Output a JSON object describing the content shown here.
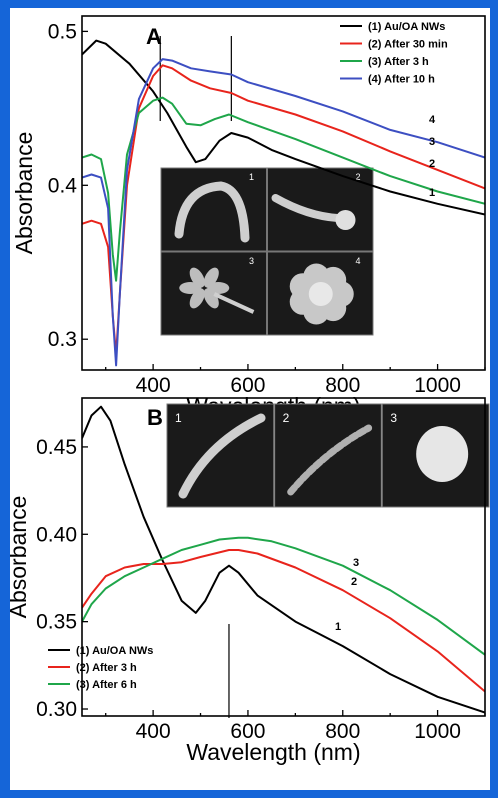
{
  "chart_data": [
    {
      "panel": "A",
      "type": "line",
      "xlabel": "Wavelength (nm)",
      "ylabel": "Absorbance",
      "xlim": [
        250,
        1100
      ],
      "ylim": [
        0.28,
        0.51
      ],
      "xticks": [
        400,
        600,
        800,
        1000
      ],
      "xtick_labels": [
        "400",
        "600",
        "800",
        "1000"
      ],
      "yticks": [
        0.3,
        0.4,
        0.5
      ],
      "ytick_labels": [
        "0.3",
        "0.4",
        "0.5"
      ],
      "legend_position": "top-right",
      "marker_lines_x": [
        415,
        565
      ],
      "series": [
        {
          "name": "(1) Au/OA NWs",
          "label": "1",
          "color": "#000000",
          "x": [
            250,
            280,
            300,
            350,
            400,
            430,
            470,
            490,
            510,
            540,
            565,
            600,
            650,
            700,
            800,
            900,
            1000,
            1100
          ],
          "y": [
            0.485,
            0.494,
            0.492,
            0.479,
            0.461,
            0.447,
            0.425,
            0.415,
            0.417,
            0.429,
            0.434,
            0.431,
            0.423,
            0.417,
            0.406,
            0.396,
            0.388,
            0.381
          ]
        },
        {
          "name": "(2) After 30 min",
          "label": "2",
          "color": "#e8241c",
          "x": [
            250,
            270,
            290,
            305,
            315,
            322,
            330,
            345,
            370,
            400,
            420,
            440,
            480,
            520,
            565,
            600,
            700,
            800,
            900,
            1000,
            1100
          ],
          "y": [
            0.375,
            0.377,
            0.375,
            0.36,
            0.315,
            0.29,
            0.33,
            0.4,
            0.45,
            0.471,
            0.478,
            0.476,
            0.468,
            0.463,
            0.46,
            0.455,
            0.446,
            0.435,
            0.422,
            0.41,
            0.398
          ]
        },
        {
          "name": "(3) After 3 h",
          "label": "3",
          "color": "#1fa64a",
          "x": [
            250,
            270,
            290,
            305,
            315,
            322,
            330,
            345,
            370,
            400,
            420,
            440,
            470,
            500,
            530,
            560,
            600,
            700,
            800,
            900,
            1000,
            1100
          ],
          "y": [
            0.418,
            0.42,
            0.417,
            0.395,
            0.355,
            0.338,
            0.37,
            0.42,
            0.447,
            0.455,
            0.457,
            0.453,
            0.44,
            0.439,
            0.443,
            0.446,
            0.441,
            0.43,
            0.418,
            0.406,
            0.396,
            0.388
          ]
        },
        {
          "name": "(4) After 10 h",
          "label": "4",
          "color": "#3d4fc2",
          "x": [
            250,
            270,
            290,
            305,
            315,
            322,
            330,
            345,
            370,
            400,
            420,
            440,
            480,
            520,
            565,
            600,
            700,
            800,
            900,
            1000,
            1100
          ],
          "y": [
            0.405,
            0.407,
            0.405,
            0.385,
            0.315,
            0.283,
            0.33,
            0.41,
            0.456,
            0.476,
            0.482,
            0.481,
            0.476,
            0.474,
            0.472,
            0.467,
            0.458,
            0.448,
            0.436,
            0.428,
            0.418
          ]
        }
      ],
      "inset_labels": [
        "1",
        "2",
        "3",
        "4"
      ]
    },
    {
      "panel": "B",
      "type": "line",
      "xlabel": "Wavelength (nm)",
      "ylabel": "Absorbance",
      "xlim": [
        250,
        1100
      ],
      "ylim": [
        0.296,
        0.478
      ],
      "xticks": [
        400,
        600,
        800,
        1000
      ],
      "xtick_labels": [
        "400",
        "600",
        "800",
        "1000"
      ],
      "yticks": [
        0.3,
        0.35,
        0.4,
        0.45
      ],
      "ytick_labels": [
        "0.30",
        "0.35",
        "0.40",
        "0.45"
      ],
      "legend_position": "bottom-left",
      "marker_lines_x": [
        560
      ],
      "series": [
        {
          "name": "(1) Au/OA NWs",
          "label": "1",
          "color": "#000000",
          "x": [
            250,
            270,
            290,
            310,
            340,
            380,
            420,
            460,
            490,
            510,
            540,
            560,
            580,
            620,
            700,
            800,
            900,
            1000,
            1100
          ],
          "y": [
            0.455,
            0.468,
            0.473,
            0.465,
            0.44,
            0.41,
            0.385,
            0.362,
            0.355,
            0.362,
            0.378,
            0.382,
            0.378,
            0.365,
            0.35,
            0.336,
            0.32,
            0.307,
            0.298
          ]
        },
        {
          "name": "(2) After 3 h",
          "label": "2",
          "color": "#e8241c",
          "x": [
            250,
            270,
            300,
            340,
            380,
            420,
            460,
            500,
            560,
            580,
            620,
            700,
            800,
            900,
            1000,
            1100
          ],
          "y": [
            0.358,
            0.366,
            0.376,
            0.381,
            0.383,
            0.383,
            0.384,
            0.387,
            0.391,
            0.391,
            0.389,
            0.381,
            0.368,
            0.352,
            0.333,
            0.31
          ]
        },
        {
          "name": "(3) After 6 h",
          "label": "3",
          "color": "#1fa64a",
          "x": [
            250,
            270,
            300,
            340,
            380,
            420,
            460,
            500,
            540,
            580,
            600,
            650,
            700,
            800,
            900,
            1000,
            1100
          ],
          "y": [
            0.35,
            0.36,
            0.369,
            0.376,
            0.381,
            0.386,
            0.391,
            0.394,
            0.397,
            0.398,
            0.398,
            0.396,
            0.392,
            0.382,
            0.368,
            0.351,
            0.331
          ]
        }
      ],
      "inset_labels": [
        "1",
        "2",
        "3"
      ]
    }
  ]
}
